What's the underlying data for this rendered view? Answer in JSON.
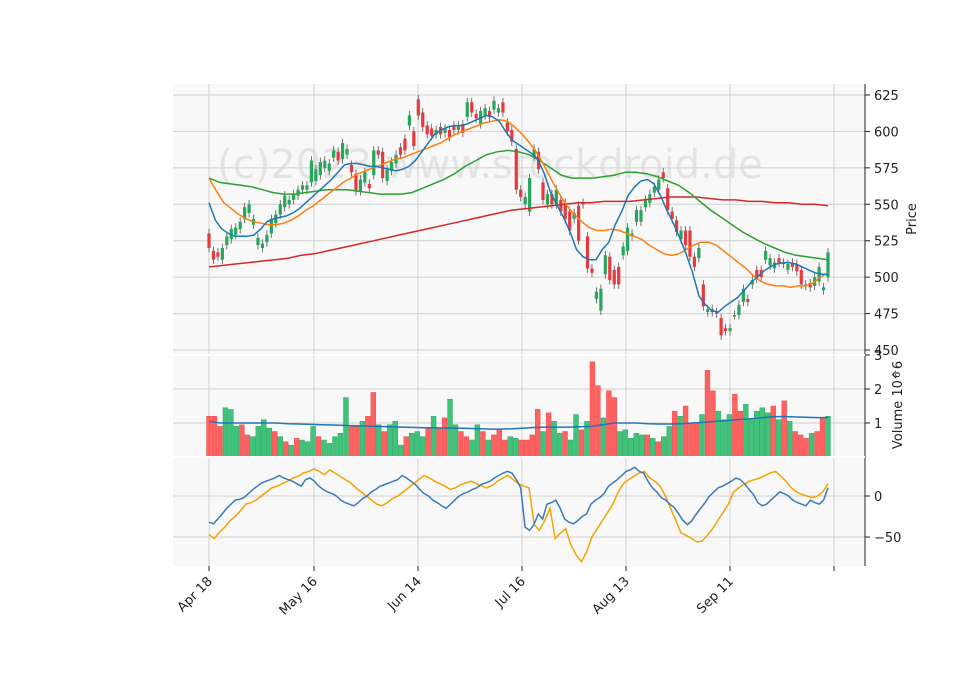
{
  "chart_data": {
    "type": "candlestick",
    "watermark": "(c)2023 www.stockdroid.de",
    "x_dates": [
      "Apr 18",
      "May 16",
      "Jun 14",
      "Jul 16",
      "Aug 13",
      "Sep 11"
    ],
    "price_panel": {
      "ylabel": "Price",
      "ylim": [
        450,
        630
      ],
      "ticks": [
        450,
        475,
        500,
        525,
        550,
        575,
        600,
        625
      ],
      "candles_open_close": [
        [
          530,
          520
        ],
        [
          518,
          512
        ],
        [
          517,
          514
        ],
        [
          512,
          520
        ],
        [
          522,
          528
        ],
        [
          526,
          533
        ],
        [
          529,
          534
        ],
        [
          533,
          538
        ],
        [
          540,
          548
        ],
        [
          544,
          550
        ],
        [
          536,
          540
        ],
        [
          522,
          527
        ],
        [
          520,
          523
        ],
        [
          524,
          529
        ],
        [
          530,
          540
        ],
        [
          537,
          543
        ],
        [
          543,
          550
        ],
        [
          548,
          556
        ],
        [
          550,
          553
        ],
        [
          553,
          557
        ],
        [
          556,
          560
        ],
        [
          560,
          563
        ],
        [
          560,
          563
        ],
        [
          565,
          580
        ],
        [
          566,
          574
        ],
        [
          570,
          579
        ],
        [
          575,
          580
        ],
        [
          573,
          578
        ],
        [
          582,
          587
        ],
        [
          586,
          580
        ],
        [
          581,
          592
        ],
        [
          584,
          588
        ],
        [
          577,
          572
        ],
        [
          571,
          559
        ],
        [
          559,
          567
        ],
        [
          565,
          572
        ],
        [
          564,
          561
        ],
        [
          570,
          587
        ],
        [
          587,
          584
        ],
        [
          586,
          568
        ],
        [
          566,
          574
        ],
        [
          573,
          579
        ],
        [
          578,
          584
        ],
        [
          589,
          584
        ],
        [
          595,
          587
        ],
        [
          604,
          611
        ],
        [
          600,
          590
        ],
        [
          622,
          611
        ],
        [
          613,
          603
        ],
        [
          604,
          598
        ],
        [
          602,
          597
        ],
        [
          598,
          601
        ],
        [
          603,
          598
        ],
        [
          599,
          602
        ],
        [
          601,
          596
        ],
        [
          604,
          601
        ],
        [
          601,
          604
        ],
        [
          605,
          599
        ],
        [
          610,
          620
        ],
        [
          620,
          613
        ],
        [
          612,
          609
        ],
        [
          605,
          614
        ],
        [
          611,
          616
        ],
        [
          614,
          610
        ],
        [
          615,
          621
        ],
        [
          613,
          616
        ],
        [
          620,
          613
        ],
        [
          606,
          600
        ],
        [
          601,
          593
        ],
        [
          588,
          560
        ],
        [
          560,
          555
        ],
        [
          550,
          555
        ],
        [
          545,
          568
        ],
        [
          583,
          588
        ],
        [
          586,
          574
        ],
        [
          565,
          553
        ],
        [
          550,
          557
        ],
        [
          557,
          550
        ],
        [
          550,
          560
        ],
        [
          553,
          545
        ],
        [
          551,
          540
        ],
        [
          545,
          532
        ],
        [
          540,
          544
        ],
        [
          549,
          525
        ],
        [
          551,
          550
        ],
        [
          528,
          506
        ],
        [
          506,
          503
        ],
        [
          485,
          490
        ],
        [
          477,
          492
        ],
        [
          502,
          515
        ],
        [
          514,
          498
        ],
        [
          505,
          495
        ],
        [
          507,
          495
        ],
        [
          515,
          521
        ],
        [
          518,
          534
        ],
        [
          528,
          530
        ],
        [
          538,
          546
        ],
        [
          538,
          546
        ],
        [
          548,
          553
        ],
        [
          551,
          557
        ],
        [
          558,
          562
        ],
        [
          560,
          567
        ],
        [
          572,
          568
        ],
        [
          561,
          546
        ],
        [
          545,
          540
        ],
        [
          539,
          531
        ],
        [
          526,
          532
        ],
        [
          532,
          522
        ],
        [
          532,
          514
        ],
        [
          514,
          507
        ],
        [
          513,
          520
        ],
        [
          495,
          480
        ],
        [
          476,
          478
        ],
        [
          478,
          476
        ],
        [
          476,
          475
        ],
        [
          472,
          460
        ],
        [
          465,
          463
        ],
        [
          463,
          465
        ],
        [
          474,
          474
        ],
        [
          474,
          481
        ],
        [
          483,
          492
        ],
        [
          485,
          483
        ],
        [
          495,
          498
        ],
        [
          505,
          499
        ],
        [
          505,
          500
        ],
        [
          512,
          518
        ],
        [
          508,
          513
        ],
        [
          506,
          510
        ],
        [
          513,
          510
        ],
        [
          510,
          509
        ],
        [
          505,
          509
        ],
        [
          510,
          507
        ],
        [
          509,
          504
        ],
        [
          505,
          495
        ],
        [
          494,
          495
        ],
        [
          496,
          493
        ],
        [
          494,
          500
        ],
        [
          497,
          507
        ],
        [
          491,
          493
        ],
        [
          500,
          517
        ]
      ],
      "ma_short": [
        551,
        539,
        533,
        530,
        528,
        528,
        528,
        529,
        533,
        538,
        540,
        541,
        542,
        544,
        547,
        551,
        555,
        559,
        563,
        567,
        572,
        577,
        578,
        578,
        577,
        576,
        576,
        575,
        574,
        573,
        574,
        576,
        580,
        586,
        592,
        598,
        601,
        603,
        604,
        604,
        605,
        607,
        609,
        611,
        610,
        607,
        600,
        594,
        591,
        588,
        585,
        581,
        571,
        558,
        549,
        541,
        531,
        519,
        514,
        512,
        512,
        519,
        524,
        536,
        545,
        556,
        562,
        566,
        567,
        564,
        556,
        546,
        537,
        527,
        516,
        503,
        487,
        481,
        477,
        476,
        480,
        483,
        486,
        491,
        496,
        500,
        504,
        507,
        509,
        510,
        510,
        509,
        507,
        505,
        503,
        502,
        502
      ],
      "ma_mid": [
        568,
        559,
        551,
        547,
        543,
        540,
        538,
        537,
        536,
        536,
        537,
        539,
        542,
        546,
        549,
        553,
        557,
        561,
        565,
        568,
        571,
        573,
        575,
        577,
        579,
        581,
        582,
        584,
        586,
        588,
        590,
        592,
        595,
        598,
        600,
        602,
        604,
        606,
        607,
        608,
        607,
        603,
        598,
        592,
        585,
        576,
        566,
        557,
        549,
        543,
        538,
        534,
        532,
        532,
        533,
        532,
        530,
        528,
        526,
        522,
        519,
        516,
        515,
        516,
        519,
        522,
        524,
        524,
        522,
        518,
        514,
        510,
        506,
        501,
        497,
        495,
        494,
        494,
        493,
        494,
        494,
        496,
        500,
        503
      ],
      "ma_long": [
        568,
        565,
        564,
        563,
        562,
        560,
        558,
        557,
        557,
        558,
        559,
        560,
        560,
        560,
        559,
        558,
        557,
        557,
        557,
        558,
        561,
        564,
        567,
        571,
        576,
        580,
        584,
        586,
        587,
        586,
        584,
        580,
        575,
        570,
        568,
        568,
        568,
        569,
        570,
        572,
        572,
        571,
        569,
        566,
        563,
        558,
        552,
        546,
        541,
        536,
        531,
        527,
        523,
        520,
        517,
        515,
        514,
        513,
        512
      ],
      "ma_trend": [
        507,
        508,
        509,
        510,
        511,
        512,
        513,
        515,
        516,
        518,
        520,
        522,
        524,
        526,
        528,
        530,
        532,
        534,
        536,
        538,
        540,
        542,
        544,
        546,
        547,
        548,
        549,
        550,
        551,
        551,
        552,
        552,
        552,
        553,
        554,
        555,
        555,
        555,
        554,
        553,
        553,
        552,
        552,
        551,
        551,
        550,
        550,
        549
      ]
    },
    "volume_panel": {
      "ylabel": "Volume  10^6",
      "ylim": [
        0,
        3
      ],
      "ticks": [
        1,
        2,
        3
      ],
      "tick_labels": [
        "1",
        "2",
        "3"
      ],
      "values": [
        1.2,
        1.2,
        0.9,
        1.45,
        1.4,
        0.9,
        0.95,
        0.65,
        0.6,
        0.9,
        1.1,
        0.85,
        0.75,
        0.6,
        0.45,
        0.35,
        0.55,
        0.5,
        0.45,
        0.9,
        0.6,
        0.5,
        0.4,
        0.6,
        0.7,
        1.75,
        0.9,
        0.9,
        1.05,
        1.2,
        1.9,
        0.95,
        0.75,
        0.95,
        1.05,
        0.35,
        0.6,
        0.7,
        0.75,
        0.6,
        0.85,
        1.2,
        0.85,
        1.15,
        1.7,
        0.95,
        0.75,
        0.6,
        0.5,
        0.95,
        0.75,
        0.5,
        0.65,
        0.8,
        0.5,
        0.6,
        0.55,
        0.5,
        0.5,
        0.65,
        1.4,
        0.75,
        1.3,
        1.05,
        0.7,
        0.75,
        0.5,
        1.25,
        0.8,
        1.05,
        2.8,
        2.1,
        1.15,
        1.95,
        1.75,
        0.75,
        0.8,
        0.55,
        0.7,
        0.65,
        0.65,
        0.55,
        0.45,
        0.6,
        0.9,
        1.35,
        1.2,
        1.5,
        1.0,
        1.0,
        1.25,
        2.55,
        1.95,
        1.35,
        1.1,
        1.25,
        1.85,
        1.35,
        1.55,
        1.1,
        1.35,
        1.45,
        1.3,
        1.5,
        1.1,
        1.65,
        1.05,
        0.75,
        0.65,
        0.55,
        0.7,
        0.75,
        1.15,
        1.2
      ],
      "up_flags": [
        0,
        0,
        0,
        1,
        1,
        1,
        0,
        0,
        1,
        1,
        1,
        1,
        0,
        1,
        0,
        1,
        0,
        1,
        1,
        1,
        0,
        1,
        1,
        1,
        1,
        1,
        0,
        0,
        1,
        0,
        0,
        1,
        0,
        1,
        1,
        1,
        0,
        1,
        1,
        1,
        0,
        1,
        0,
        0,
        1,
        1,
        0,
        0,
        1,
        1,
        0,
        1,
        0,
        0,
        0,
        1,
        1,
        0,
        0,
        0,
        0,
        1,
        0,
        1,
        1,
        0,
        1,
        1,
        0,
        1,
        0,
        0,
        1,
        0,
        0,
        1,
        1,
        1,
        1,
        1,
        0,
        1,
        0,
        1,
        1,
        0,
        1,
        0,
        0,
        0,
        1,
        0,
        0,
        1,
        1,
        1,
        0,
        0,
        1,
        1,
        1,
        1,
        1,
        0,
        1,
        0,
        1,
        0,
        0,
        0,
        1,
        0,
        0,
        1
      ],
      "avg_line": [
        1.05,
        1.0,
        1.0,
        1.0,
        1.0,
        1.0,
        1.0,
        0.98,
        0.97,
        0.96,
        0.95,
        0.94,
        0.93,
        0.92,
        0.91,
        0.9,
        0.89,
        0.88,
        0.87,
        0.86,
        0.86,
        0.85,
        0.85,
        0.84,
        0.83,
        0.82,
        0.82,
        0.83,
        0.85,
        0.87,
        0.88,
        0.88,
        0.88,
        0.89,
        0.9,
        0.95,
        1.0,
        1.0,
        1.0,
        0.98,
        0.97,
        0.97,
        0.98,
        1.0,
        1.02,
        1.05,
        1.07,
        1.1,
        1.12,
        1.15,
        1.18,
        1.19,
        1.18,
        1.17,
        1.16,
        1.16
      ]
    },
    "oscillator_panel": {
      "ylim": [
        -85,
        50
      ],
      "ticks": [
        0,
        -50
      ],
      "tick_labels": [
        "0",
        "−50"
      ],
      "series_blue": [
        -32,
        -34,
        -28,
        -22,
        -15,
        -10,
        -5,
        -4,
        -2,
        3,
        8,
        12,
        16,
        18,
        20,
        22,
        25,
        22,
        20,
        18,
        15,
        12,
        20,
        22,
        18,
        12,
        8,
        5,
        3,
        0,
        -5,
        -8,
        -10,
        -12,
        -8,
        -3,
        0,
        5,
        8,
        12,
        14,
        16,
        18,
        20,
        25,
        22,
        18,
        14,
        8,
        3,
        0,
        -5,
        -8,
        -12,
        -15,
        -10,
        -5,
        0,
        3,
        5,
        8,
        10,
        14,
        16,
        18,
        22,
        25,
        28,
        30,
        28,
        20,
        10,
        -38,
        -42,
        -35,
        -22,
        -28,
        -10,
        -8,
        -5,
        -15,
        -28,
        -32,
        -34,
        -30,
        -25,
        -22,
        -10,
        -5,
        -2,
        3,
        12,
        16,
        20,
        25,
        30,
        32,
        35,
        30,
        28,
        18,
        10,
        5,
        -2,
        -5,
        -10,
        -14,
        -22,
        -30,
        -35,
        -30,
        -22,
        -15,
        -8,
        0,
        5,
        10,
        12,
        15,
        18,
        22,
        20,
        15,
        8,
        2,
        -8,
        -12,
        -10,
        -5,
        0,
        5,
        3,
        0,
        -5,
        -8,
        -10,
        -12,
        -5,
        -8,
        -10,
        -5,
        10
      ],
      "series_orange": [
        -47,
        -52,
        -44,
        -38,
        -30,
        -25,
        -18,
        -10,
        -8,
        -5,
        0,
        5,
        10,
        12,
        15,
        18,
        22,
        24,
        28,
        30,
        33,
        30,
        26,
        32,
        28,
        24,
        20,
        16,
        10,
        5,
        0,
        -5,
        -10,
        -12,
        -8,
        -3,
        0,
        5,
        10,
        15,
        20,
        25,
        22,
        18,
        15,
        12,
        8,
        10,
        14,
        16,
        18,
        15,
        12,
        10,
        13,
        18,
        22,
        25,
        20,
        15,
        12,
        10,
        -35,
        -42,
        -30,
        -15,
        -52,
        -45,
        -40,
        -60,
        -72,
        -80,
        -68,
        -50,
        -40,
        -30,
        -20,
        -10,
        5,
        15,
        20,
        24,
        28,
        30,
        22,
        18,
        12,
        0,
        -15,
        -30,
        -45,
        -48,
        -52,
        -56,
        -55,
        -48,
        -40,
        -30,
        -20,
        -10,
        5,
        10,
        14,
        18,
        20,
        22,
        25,
        28,
        30,
        24,
        18,
        10,
        5,
        2,
        0,
        -2,
        0,
        5,
        15
      ]
    }
  }
}
